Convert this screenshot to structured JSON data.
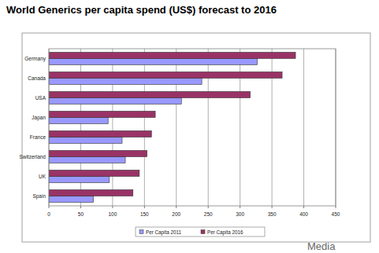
{
  "chart_data": {
    "type": "bar",
    "orientation": "horizontal",
    "title": "World Generics per capita spend (US$) forecast to 2016",
    "categories": [
      "Germany",
      "Canada",
      "USA",
      "Japan",
      "France",
      "Switzerland",
      "UK",
      "Spain"
    ],
    "series": [
      {
        "name": "Per Capita 2011",
        "color": "#9999ff",
        "values": [
          327,
          240,
          208,
          93,
          115,
          120,
          95,
          70
        ]
      },
      {
        "name": "Per Capita 2016",
        "color": "#993366",
        "values": [
          387,
          366,
          316,
          167,
          161,
          154,
          142,
          132
        ]
      }
    ],
    "xlim": [
      0,
      450
    ],
    "xticks": [
      0,
      50,
      100,
      150,
      200,
      250,
      300,
      350,
      400,
      450
    ],
    "grid": true,
    "legend": "bottom",
    "annotation": "Media"
  }
}
